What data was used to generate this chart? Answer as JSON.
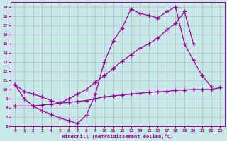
{
  "bg_color": "#c8e8e8",
  "grid_color": "#b0b8d0",
  "line_color": "#990099",
  "xlim": [
    -0.5,
    23.5
  ],
  "ylim": [
    6,
    19.5
  ],
  "xticks": [
    0,
    1,
    2,
    3,
    4,
    5,
    6,
    7,
    8,
    9,
    10,
    11,
    12,
    13,
    14,
    15,
    16,
    17,
    18,
    19,
    20,
    21,
    22,
    23
  ],
  "yticks": [
    6,
    7,
    8,
    9,
    10,
    11,
    12,
    13,
    14,
    15,
    16,
    17,
    18,
    19
  ],
  "xlabel": "Windchill (Refroidissement éolien,°C)",
  "line1_x": [
    0,
    1,
    2,
    3,
    4,
    5,
    6,
    7,
    8,
    9,
    10,
    11,
    12,
    13,
    14,
    15,
    16,
    17,
    18,
    19,
    20,
    21,
    22
  ],
  "line1_y": [
    10.5,
    9.0,
    8.2,
    7.7,
    7.3,
    6.9,
    6.6,
    6.3,
    7.2,
    9.5,
    13.0,
    15.3,
    16.7,
    18.8,
    18.3,
    18.1,
    17.8,
    18.5,
    19.0,
    15.0,
    13.2,
    11.5,
    10.3
  ],
  "line2_x": [
    0,
    1,
    2,
    3,
    4,
    5,
    6,
    7,
    8,
    9,
    10,
    11,
    12,
    13,
    14,
    15,
    16,
    17,
    18,
    19,
    20
  ],
  "line2_y": [
    10.5,
    9.8,
    9.5,
    9.2,
    8.8,
    8.5,
    9.0,
    9.5,
    10.0,
    10.8,
    11.5,
    12.3,
    13.1,
    13.8,
    14.5,
    15.0,
    15.6,
    16.5,
    17.2,
    18.5,
    15.0
  ],
  "line3_x": [
    0,
    2,
    3,
    4,
    5,
    6,
    7,
    8,
    9,
    10,
    11,
    12,
    13,
    14,
    15,
    16,
    17,
    18,
    19,
    20,
    21,
    22,
    23
  ],
  "line3_y": [
    8.2,
    8.2,
    8.3,
    8.4,
    8.5,
    8.6,
    8.7,
    8.8,
    9.0,
    9.2,
    9.3,
    9.4,
    9.5,
    9.6,
    9.7,
    9.75,
    9.8,
    9.9,
    9.95,
    10.0,
    10.0,
    10.0,
    10.2
  ]
}
